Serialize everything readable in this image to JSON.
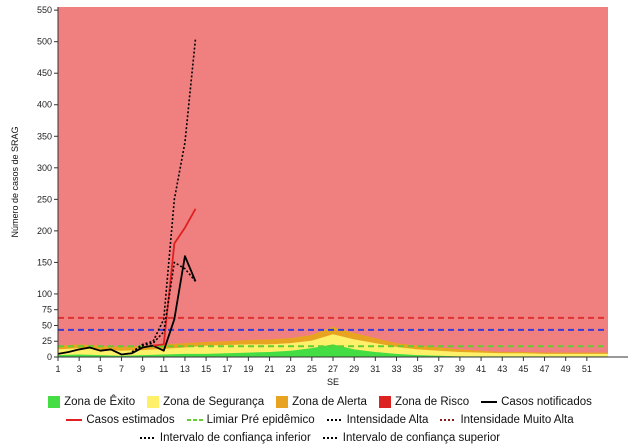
{
  "chart_data": {
    "type": "line",
    "xlabel": "SE",
    "ylabel": "Número de casos de SRAG",
    "xlim": [
      1,
      53
    ],
    "ylim": [
      0,
      555
    ],
    "x_ticks": [
      1,
      3,
      5,
      7,
      9,
      11,
      13,
      15,
      17,
      19,
      21,
      23,
      25,
      27,
      29,
      31,
      33,
      35,
      37,
      39,
      41,
      43,
      45,
      47,
      49,
      51
    ],
    "y_ticks": [
      0,
      25,
      50,
      75,
      100,
      150,
      200,
      250,
      300,
      350,
      400,
      450,
      500,
      550
    ],
    "background_zone": {
      "name": "Zona de Risco",
      "color": "#f08080"
    },
    "zones": [
      {
        "name": "Zona de Alerta",
        "color": "#e8a420",
        "x": [
          1,
          3,
          5,
          7,
          9,
          11,
          13,
          15,
          17,
          19,
          21,
          23,
          25,
          27,
          29,
          31,
          33,
          35,
          37,
          39,
          41,
          43,
          45,
          47,
          49,
          51,
          53
        ],
        "y": [
          18,
          20,
          18,
          16,
          17,
          20,
          22,
          24,
          25,
          27,
          28,
          30,
          35,
          48,
          38,
          30,
          22,
          18,
          15,
          12,
          10,
          8,
          8,
          7,
          7,
          7,
          7
        ]
      },
      {
        "name": "Zona de Segurança",
        "color": "#fff06a",
        "x": [
          1,
          3,
          5,
          7,
          9,
          11,
          13,
          15,
          17,
          19,
          21,
          23,
          25,
          27,
          29,
          31,
          33,
          35,
          37,
          39,
          41,
          43,
          45,
          47,
          49,
          51,
          53
        ],
        "y": [
          12,
          14,
          12,
          10,
          11,
          13,
          15,
          18,
          19,
          20,
          20,
          22,
          26,
          36,
          28,
          22,
          16,
          12,
          10,
          8,
          7,
          6,
          6,
          5,
          5,
          5,
          5
        ]
      },
      {
        "name": "Zona de Êxito",
        "color": "#44dd44",
        "x": [
          1,
          3,
          5,
          7,
          9,
          11,
          13,
          15,
          17,
          19,
          21,
          23,
          25,
          27,
          29,
          31,
          33,
          35,
          37,
          39,
          41,
          43,
          45,
          47,
          49,
          51,
          53
        ],
        "y": [
          3,
          4,
          3,
          2,
          3,
          4,
          5,
          5,
          6,
          7,
          8,
          10,
          14,
          20,
          12,
          8,
          5,
          3,
          2,
          1,
          1,
          1,
          1,
          1,
          1,
          1,
          1
        ]
      }
    ],
    "thresholds": [
      {
        "name": "Limiar Pré epidêmico",
        "value": 17,
        "color": "#66cc33",
        "dash": "6,4"
      },
      {
        "name": "Intensidade Alta",
        "value": 43,
        "color": "#3a3ad8",
        "dash": "6,4"
      },
      {
        "name": "Intensidade Muito Alta",
        "value": 62,
        "color": "#e03030",
        "dash": "6,4"
      }
    ],
    "series": [
      {
        "name": "Casos notificados",
        "color": "#000000",
        "style": "solid",
        "x": [
          1,
          2,
          3,
          4,
          5,
          6,
          7,
          8,
          9,
          10,
          11,
          12,
          13,
          14
        ],
        "y": [
          5,
          8,
          12,
          15,
          10,
          12,
          4,
          6,
          15,
          18,
          10,
          60,
          160,
          120
        ]
      },
      {
        "name": "Casos estimados",
        "color": "#e02020",
        "style": "solid",
        "x": [
          10,
          11,
          12,
          13,
          14
        ],
        "y": [
          18,
          20,
          180,
          205,
          235
        ]
      },
      {
        "name": "Intervalo de confiança inferior",
        "color": "#000000",
        "style": "dotted",
        "x": [
          8,
          9,
          10,
          11,
          12,
          13,
          14
        ],
        "y": [
          7,
          18,
          22,
          40,
          150,
          140,
          120
        ]
      },
      {
        "name": "Intervalo de confiança superior",
        "color": "#000000",
        "style": "dotted",
        "x": [
          8,
          9,
          10,
          11,
          12,
          13,
          14
        ],
        "y": [
          8,
          20,
          25,
          60,
          250,
          340,
          505
        ]
      }
    ],
    "legend": {
      "placement": "bottom",
      "rows": [
        [
          {
            "label": "Zona de Êxito",
            "kind": "box",
            "color": "#44dd44"
          },
          {
            "label": "Zona de Segurança",
            "kind": "box",
            "color": "#fff06a"
          },
          {
            "label": "Zona de Alerta",
            "kind": "box",
            "color": "#e8a420"
          },
          {
            "label": "Zona de Risco",
            "kind": "box",
            "color": "#dd2222"
          },
          {
            "label": "Casos notificados",
            "kind": "line",
            "color": "#000000"
          }
        ],
        [
          {
            "label": "Casos estimados",
            "kind": "line",
            "color": "#e02020"
          },
          {
            "label": "Limiar Pré epidêmico",
            "kind": "dash",
            "color": "#66cc33"
          },
          {
            "label": "Intensidade Alta",
            "kind": "dot",
            "color": "#000000"
          },
          {
            "label": "Intensidade Muito Alta",
            "kind": "dot",
            "color": "#8b1a1a"
          }
        ],
        [
          {
            "label": "Intervalo de confiança inferior",
            "kind": "dot",
            "color": "#000000"
          },
          {
            "label": "Intervalo de confiança superior",
            "kind": "dot",
            "color": "#000000"
          }
        ]
      ]
    }
  }
}
